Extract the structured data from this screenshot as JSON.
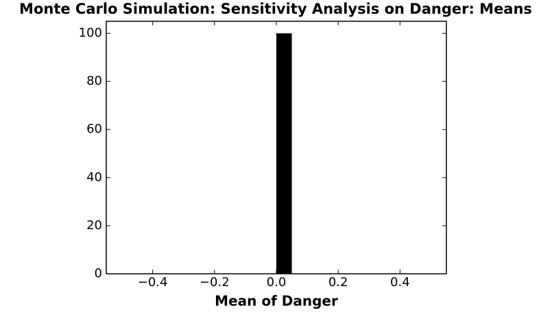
{
  "chart_data": {
    "type": "histogram",
    "title": "Monte Carlo Simulation: Sensitivity Analysis on Danger: Means",
    "x_label": "Mean of Danger",
    "bins": [
      -0.5,
      -0.45,
      -0.4,
      -0.35,
      -0.3,
      -0.25,
      -0.2,
      -0.15,
      -0.1,
      -0.05,
      0,
      0.05,
      0.1,
      0.15,
      0.2,
      0.25,
      0.3,
      0.35,
      0.4,
      0.45,
      0.5
    ],
    "counts": [
      0,
      0,
      0,
      0,
      0,
      0,
      0,
      0,
      0,
      0,
      100,
      0,
      0,
      0,
      0,
      0,
      0,
      0,
      0,
      0
    ],
    "color": "#000000",
    "xlim": [
      -0.55,
      0.55
    ],
    "xticks": [
      {
        "value": -0.4,
        "label": "−0.4"
      },
      {
        "value": -0.2,
        "label": "−0.2"
      },
      {
        "value": 0,
        "label": "0.0"
      },
      0.2,
      0.4
    ],
    "ylim": [
      0,
      105
    ],
    "yticks": [
      0,
      20,
      40,
      60,
      80,
      100
    ],
    "grid": false
  }
}
